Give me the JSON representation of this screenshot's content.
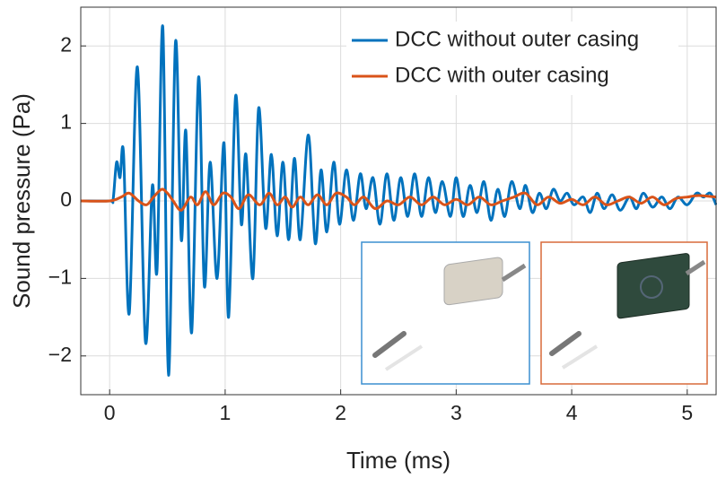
{
  "chart_data": {
    "type": "line",
    "xlabel": "Time (ms)",
    "ylabel": "Sound pressure (Pa)",
    "xlim": [
      -0.25,
      5.25
    ],
    "ylim": [
      -2.5,
      2.5
    ],
    "xticks": [
      0,
      1,
      2,
      3,
      4,
      5
    ],
    "yticks": [
      {
        "value": -2,
        "label": "−2"
      },
      {
        "value": -1,
        "label": "−1"
      },
      0,
      1,
      2
    ],
    "grid": true,
    "legend": "upper right",
    "series": [
      {
        "name": "DCC without outer casing",
        "color": "#0072bd",
        "x": [
          -0.25,
          0,
          0.03,
          0.06,
          0.09,
          0.12,
          0.17,
          0.24,
          0.31,
          0.37,
          0.41,
          0.46,
          0.51,
          0.57,
          0.62,
          0.66,
          0.71,
          0.77,
          0.82,
          0.87,
          0.93,
          0.99,
          1.03,
          1.09,
          1.14,
          1.18,
          1.24,
          1.29,
          1.35,
          1.4,
          1.45,
          1.5,
          1.55,
          1.6,
          1.65,
          1.72,
          1.78,
          1.83,
          1.88,
          1.94,
          1.99,
          2.05,
          2.11,
          2.17,
          2.22,
          2.28,
          2.34,
          2.4,
          2.46,
          2.52,
          2.58,
          2.64,
          2.7,
          2.76,
          2.82,
          2.88,
          2.95,
          3.0,
          3.06,
          3.12,
          3.18,
          3.24,
          3.3,
          3.36,
          3.42,
          3.48,
          3.55,
          3.6,
          3.66,
          3.72,
          3.78,
          3.84,
          3.9,
          3.96,
          4.02,
          4.1,
          4.16,
          4.22,
          4.28,
          4.35,
          4.42,
          4.5,
          4.56,
          4.62,
          4.7,
          4.78,
          4.85,
          4.92,
          5.0,
          5.08,
          5.14,
          5.2,
          5.25
        ],
        "values": [
          0,
          0,
          0.02,
          0.5,
          0.3,
          0.62,
          -1.45,
          1.73,
          -1.82,
          0.2,
          -0.9,
          2.25,
          -2.25,
          2.05,
          -0.5,
          0.9,
          -1.7,
          1.6,
          -1.1,
          0.5,
          -1.0,
          0.75,
          -1.5,
          1.35,
          -0.3,
          0.6,
          -1.0,
          1.2,
          -0.35,
          0.6,
          -0.45,
          0.5,
          -0.5,
          0.55,
          -0.5,
          0.85,
          -0.55,
          0.4,
          -0.4,
          0.5,
          -0.3,
          0.4,
          -0.25,
          0.35,
          -0.1,
          0.3,
          -0.3,
          0.35,
          -0.25,
          0.3,
          -0.2,
          0.35,
          -0.2,
          0.3,
          -0.15,
          0.25,
          -0.2,
          0.3,
          -0.2,
          0.2,
          -0.15,
          0.25,
          -0.25,
          0.15,
          -0.2,
          0.25,
          -0.1,
          0.2,
          -0.15,
          0.1,
          -0.1,
          0.15,
          0.0,
          0.1,
          -0.05,
          0.05,
          -0.15,
          0.1,
          -0.1,
          0.08,
          -0.12,
          0.05,
          -0.1,
          0.1,
          -0.08,
          0.05,
          -0.1,
          0.05,
          -0.05,
          0.1,
          0.05,
          0.1,
          -0.05
        ]
      },
      {
        "name": "DCC with outer casing",
        "color": "#d95319",
        "x": [
          -0.25,
          0,
          0.1,
          0.17,
          0.25,
          0.32,
          0.38,
          0.45,
          0.5,
          0.55,
          0.62,
          0.7,
          0.76,
          0.83,
          0.9,
          0.98,
          1.05,
          1.12,
          1.2,
          1.3,
          1.38,
          1.45,
          1.52,
          1.58,
          1.65,
          1.72,
          1.8,
          1.88,
          1.96,
          2.05,
          2.12,
          2.2,
          2.3,
          2.4,
          2.5,
          2.6,
          2.7,
          2.8,
          2.9,
          3.0,
          3.1,
          3.2,
          3.3,
          3.4,
          3.5,
          3.6,
          3.7,
          3.8,
          3.9,
          4.0,
          4.1,
          4.2,
          4.3,
          4.4,
          4.5,
          4.6,
          4.7,
          4.8,
          4.9,
          5.0,
          5.1,
          5.25
        ],
        "values": [
          0,
          0,
          0.05,
          0.1,
          0,
          -0.05,
          0.05,
          0.15,
          0.1,
          0,
          -0.12,
          0.05,
          -0.05,
          0.12,
          -0.05,
          0.1,
          0.05,
          -0.1,
          0.08,
          -0.05,
          0.1,
          -0.05,
          0.05,
          -0.08,
          0.05,
          -0.05,
          0.08,
          -0.05,
          0.1,
          0.05,
          -0.05,
          0.05,
          -0.1,
          0.0,
          -0.05,
          0.05,
          -0.05,
          0.05,
          -0.05,
          0.02,
          -0.05,
          0.05,
          -0.05,
          0.0,
          0.05,
          0.1,
          -0.05,
          0.05,
          -0.03,
          0.02,
          -0.05,
          0.05,
          -0.05,
          0.0,
          0.05,
          -0.03,
          0.05,
          -0.05,
          0.03,
          0.05,
          0.07,
          0.05
        ]
      }
    ]
  }
}
